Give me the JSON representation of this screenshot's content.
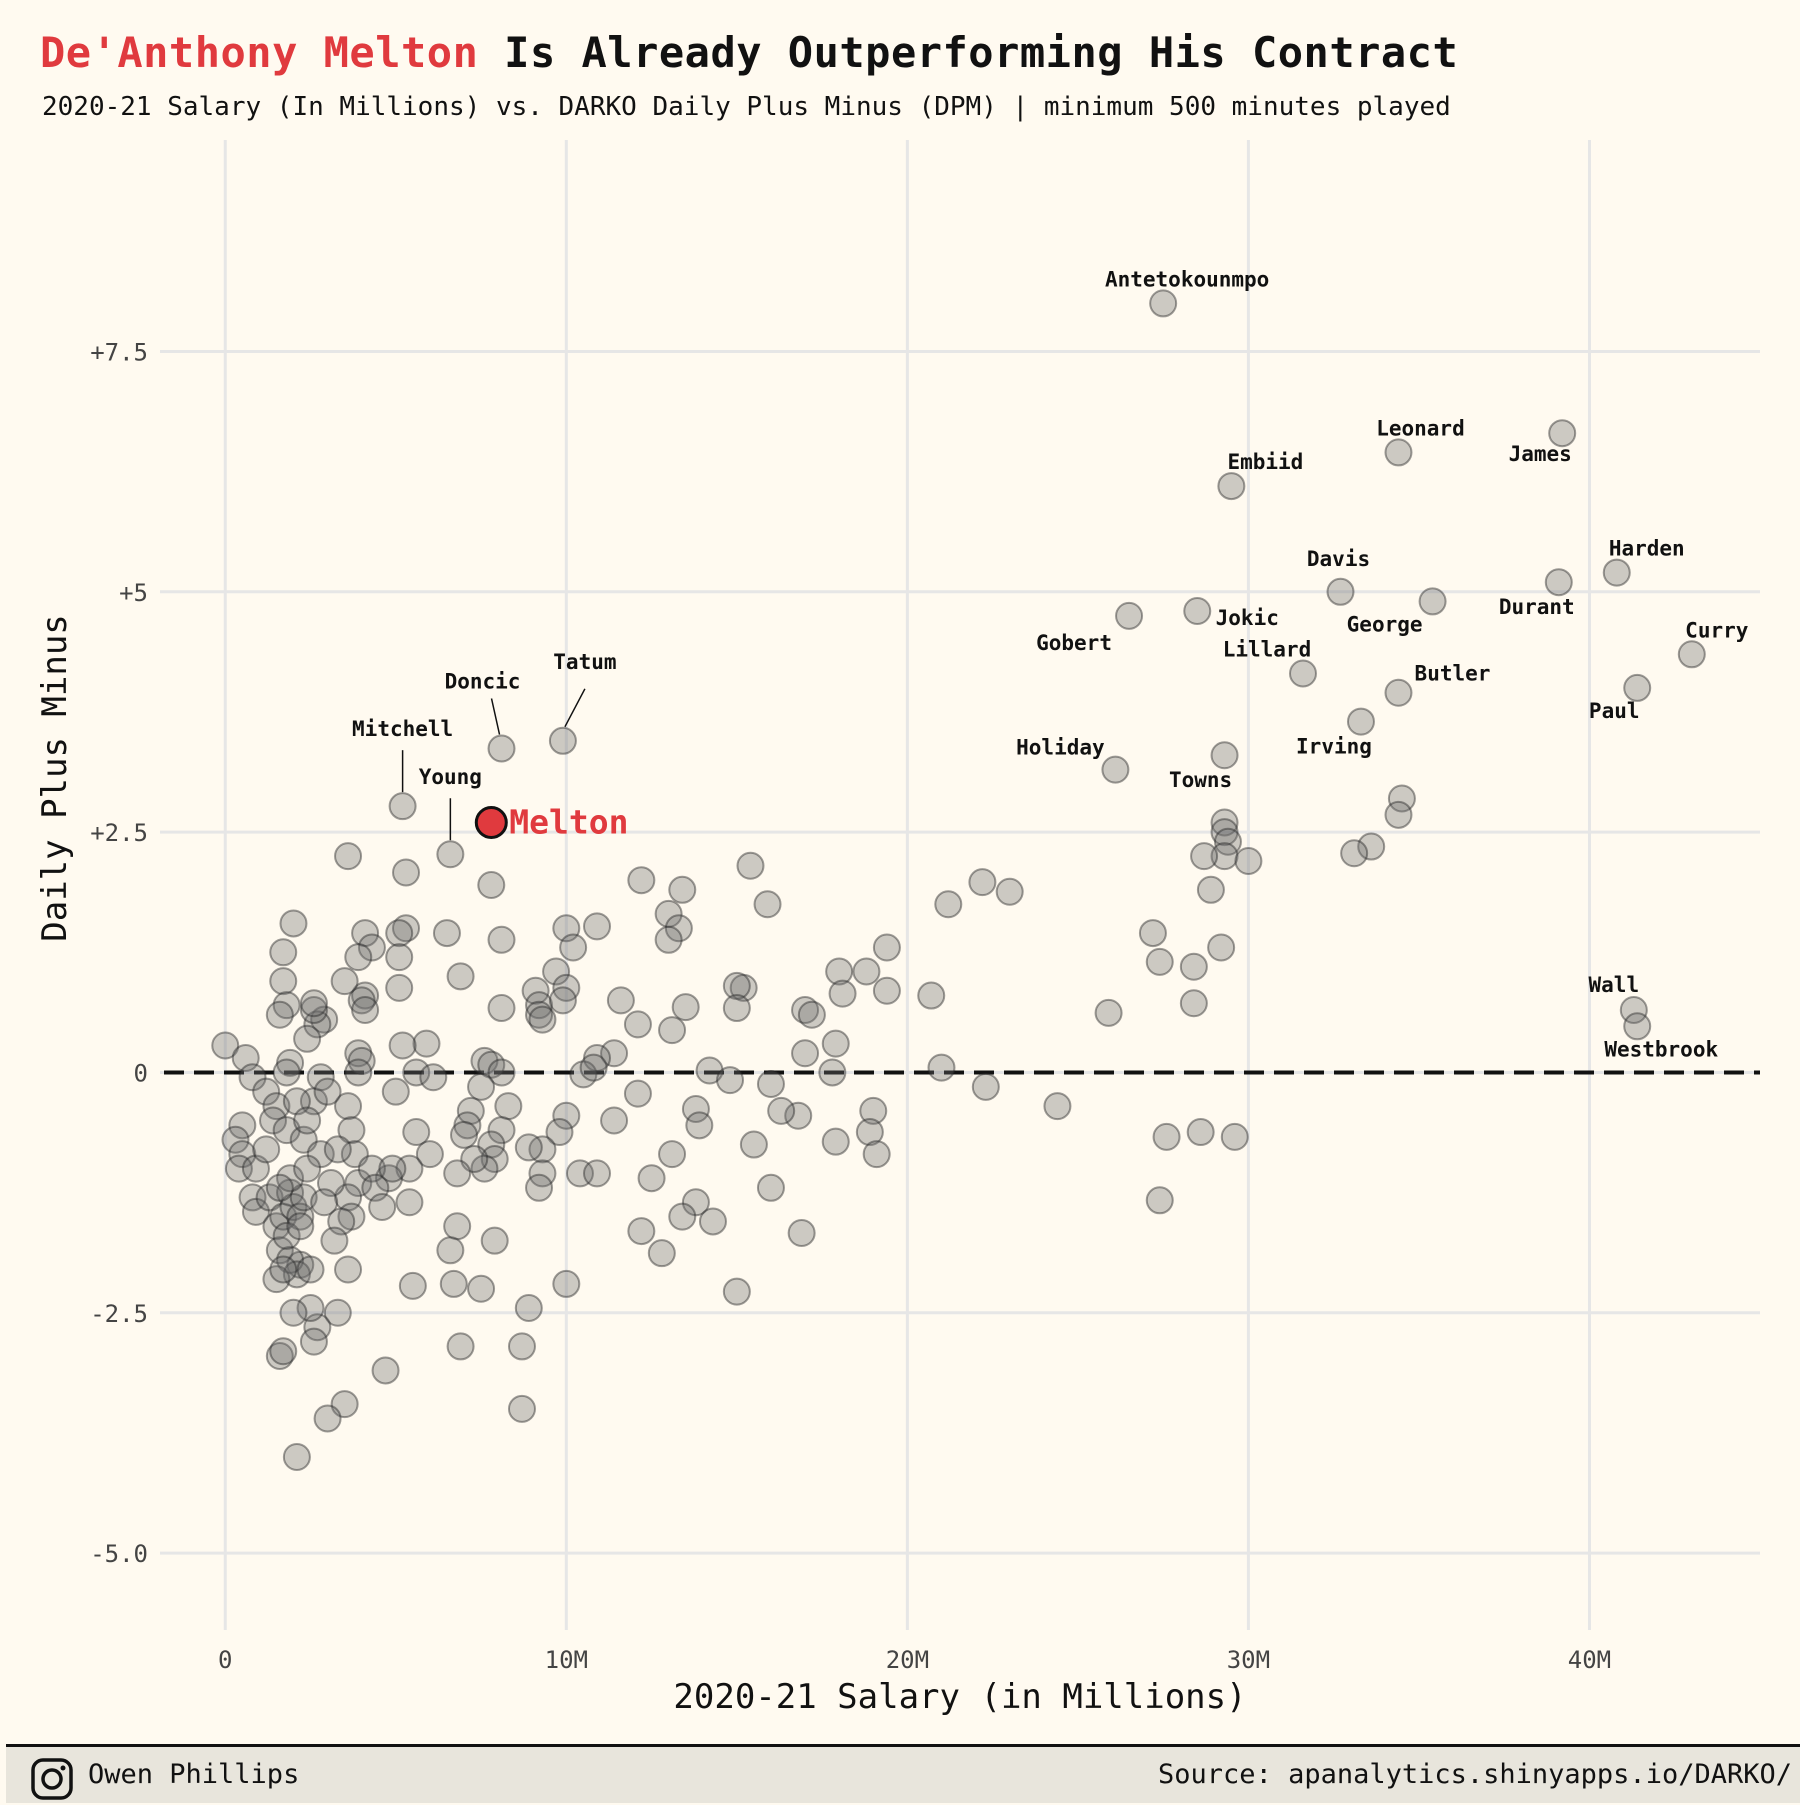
{
  "header": {
    "title_highlight": "De'Anthony Melton",
    "title_rest": " Is Already Outperforming His Contract",
    "subtitle": "2020-21 Salary (In Millions) vs. DARKO Daily Plus Minus (DPM) | minimum 500 minutes played"
  },
  "footer": {
    "author": "Owen Phillips",
    "author_icon": "instagram-icon",
    "source": "Source: apanalytics.shinyapps.io/DARKO/"
  },
  "colors": {
    "background": "#fffaf0",
    "highlight": "#e03a3e",
    "points": "#777777",
    "grid": "#e6e6e6",
    "footer_bg": "#e8e5dc"
  },
  "chart_data": {
    "type": "scatter",
    "title": "De'Anthony Melton Is Already Outperforming His Contract",
    "subtitle": "2020-21 Salary (In Millions) vs. DARKO Daily Plus Minus (DPM) | minimum 500 minutes played",
    "xlabel": "2020-21 Salary (in Millions)",
    "ylabel": "Daily Plus Minus",
    "xlim": [
      -2.5,
      45
    ],
    "ylim": [
      -5.8,
      9.7
    ],
    "x_ticks": [
      0,
      10,
      20,
      30,
      40
    ],
    "x_tick_labels": [
      "0",
      "10M",
      "20M",
      "30M",
      "40M"
    ],
    "y_ticks": [
      -5,
      -2.5,
      0,
      2.5,
      5,
      7.5
    ],
    "y_tick_labels": [
      "-5.0",
      "-2.5",
      "0",
      "+2.5",
      "+5",
      "+7.5"
    ],
    "grid": true,
    "reference_line": {
      "y": 0,
      "style": "dashed"
    },
    "highlight": {
      "label": "Melton",
      "x": 7.8,
      "y": 2.6
    },
    "labeled_points": [
      {
        "label": "Antetokounmpo",
        "x": 27.5,
        "y": 8.0
      },
      {
        "label": "James",
        "x": 39.2,
        "y": 6.65
      },
      {
        "label": "Leonard",
        "x": 34.4,
        "y": 6.45
      },
      {
        "label": "Embiid",
        "x": 29.5,
        "y": 6.1
      },
      {
        "label": "Harden",
        "x": 40.8,
        "y": 5.2
      },
      {
        "label": "Durant",
        "x": 39.1,
        "y": 5.1
      },
      {
        "label": "Davis",
        "x": 32.7,
        "y": 5.0
      },
      {
        "label": "George",
        "x": 35.4,
        "y": 4.9
      },
      {
        "label": "Jokic",
        "x": 28.5,
        "y": 4.8
      },
      {
        "label": "Gobert",
        "x": 26.5,
        "y": 4.75
      },
      {
        "label": "Curry",
        "x": 43.0,
        "y": 4.35
      },
      {
        "label": "Lillard",
        "x": 31.6,
        "y": 4.15
      },
      {
        "label": "Paul",
        "x": 41.4,
        "y": 4.0
      },
      {
        "label": "Butler",
        "x": 34.4,
        "y": 3.95
      },
      {
        "label": "Irving",
        "x": 33.3,
        "y": 3.65
      },
      {
        "label": "Tatum",
        "x": 9.9,
        "y": 3.45
      },
      {
        "label": "Doncic",
        "x": 8.1,
        "y": 3.37
      },
      {
        "label": "Towns",
        "x": 29.3,
        "y": 3.3
      },
      {
        "label": "Holiday",
        "x": 26.1,
        "y": 3.15
      },
      {
        "label": "Mitchell",
        "x": 5.2,
        "y": 2.77
      },
      {
        "label": "Young",
        "x": 6.6,
        "y": 2.27
      },
      {
        "label": "Wall",
        "x": 41.3,
        "y": 0.65
      },
      {
        "label": "Westbrook",
        "x": 41.4,
        "y": 0.48
      }
    ],
    "other_points": [
      [
        29.3,
        2.6
      ],
      [
        29.3,
        2.5
      ],
      [
        29.4,
        2.4
      ],
      [
        29.3,
        2.25
      ],
      [
        28.7,
        2.25
      ],
      [
        30.0,
        2.2
      ],
      [
        33.6,
        2.35
      ],
      [
        33.1,
        2.28
      ],
      [
        34.5,
        2.85
      ],
      [
        34.4,
        2.68
      ],
      [
        28.9,
        1.9
      ],
      [
        27.2,
        1.45
      ],
      [
        27.4,
        1.15
      ],
      [
        28.4,
        1.1
      ],
      [
        29.2,
        1.3
      ],
      [
        28.4,
        0.72
      ],
      [
        25.9,
        0.62
      ],
      [
        27.6,
        -0.67
      ],
      [
        28.6,
        -0.62
      ],
      [
        29.6,
        -0.67
      ],
      [
        27.4,
        -1.33
      ],
      [
        24.4,
        -0.35
      ],
      [
        22.3,
        -0.15
      ],
      [
        21.0,
        0.05
      ],
      [
        20.7,
        0.8
      ],
      [
        22.2,
        1.98
      ],
      [
        23.0,
        1.88
      ],
      [
        21.2,
        1.75
      ],
      [
        19.4,
        1.3
      ],
      [
        19.4,
        0.85
      ],
      [
        18.8,
        1.05
      ],
      [
        18.0,
        1.05
      ],
      [
        18.1,
        0.82
      ],
      [
        17.9,
        0.3
      ],
      [
        17.0,
        0.65
      ],
      [
        17.2,
        0.6
      ],
      [
        17.0,
        0.2
      ],
      [
        17.8,
        0.0
      ],
      [
        19.0,
        -0.4
      ],
      [
        18.9,
        -0.62
      ],
      [
        19.1,
        -0.85
      ],
      [
        17.9,
        -0.72
      ],
      [
        16.8,
        -0.45
      ],
      [
        16.3,
        -0.4
      ],
      [
        16.0,
        -0.12
      ],
      [
        16.0,
        -1.2
      ],
      [
        16.9,
        -1.67
      ],
      [
        15.4,
        2.15
      ],
      [
        15.9,
        1.75
      ],
      [
        13.4,
        1.9
      ],
      [
        13.0,
        1.65
      ],
      [
        13.3,
        1.5
      ],
      [
        12.2,
        2.0
      ],
      [
        13.0,
        1.38
      ],
      [
        15.2,
        0.88
      ],
      [
        15.0,
        0.9
      ],
      [
        15.0,
        0.67
      ],
      [
        13.5,
        0.68
      ],
      [
        13.1,
        0.44
      ],
      [
        11.6,
        0.75
      ],
      [
        12.1,
        0.5
      ],
      [
        11.4,
        0.2
      ],
      [
        10.9,
        0.15
      ],
      [
        10.5,
        -0.02
      ],
      [
        10.8,
        0.05
      ],
      [
        12.1,
        -0.22
      ],
      [
        11.4,
        -0.5
      ],
      [
        13.8,
        -0.38
      ],
      [
        13.9,
        -0.55
      ],
      [
        14.2,
        0.02
      ],
      [
        14.8,
        -0.08
      ],
      [
        15.5,
        -0.75
      ],
      [
        13.1,
        -0.85
      ],
      [
        12.5,
        -1.1
      ],
      [
        13.8,
        -1.35
      ],
      [
        13.4,
        -1.5
      ],
      [
        14.3,
        -1.55
      ],
      [
        12.2,
        -1.65
      ],
      [
        12.8,
        -1.88
      ],
      [
        15.0,
        -2.28
      ],
      [
        10.0,
        -2.2
      ],
      [
        10.0,
        1.5
      ],
      [
        10.9,
        1.52
      ],
      [
        10.2,
        1.3
      ],
      [
        9.7,
        1.05
      ],
      [
        9.1,
        0.85
      ],
      [
        10.0,
        0.88
      ],
      [
        9.2,
        0.7
      ],
      [
        9.9,
        0.75
      ],
      [
        9.2,
        0.6
      ],
      [
        9.3,
        0.55
      ],
      [
        10.0,
        -0.45
      ],
      [
        9.8,
        -0.62
      ],
      [
        9.3,
        -0.8
      ],
      [
        8.9,
        -0.78
      ],
      [
        9.3,
        -1.05
      ],
      [
        9.2,
        -1.2
      ],
      [
        10.4,
        -1.05
      ],
      [
        10.9,
        -1.05
      ],
      [
        8.9,
        -2.45
      ],
      [
        8.7,
        -2.85
      ],
      [
        8.7,
        -3.5
      ],
      [
        7.8,
        1.95
      ],
      [
        8.1,
        1.38
      ],
      [
        8.1,
        0.67
      ],
      [
        7.6,
        0.12
      ],
      [
        7.8,
        0.08
      ],
      [
        8.1,
        0.0
      ],
      [
        8.3,
        -0.35
      ],
      [
        8.1,
        -0.6
      ],
      [
        7.8,
        -0.75
      ],
      [
        7.9,
        -0.9
      ],
      [
        7.6,
        -1.0
      ],
      [
        7.9,
        -1.75
      ],
      [
        7.5,
        -0.15
      ],
      [
        7.2,
        -0.4
      ],
      [
        7.1,
        -0.55
      ],
      [
        7.0,
        -0.65
      ],
      [
        7.3,
        -0.9
      ],
      [
        6.9,
        1.0
      ],
      [
        6.5,
        1.45
      ],
      [
        6.8,
        -1.05
      ],
      [
        6.8,
        -1.6
      ],
      [
        6.6,
        -1.85
      ],
      [
        6.7,
        -2.2
      ],
      [
        7.5,
        -2.25
      ],
      [
        6.9,
        -2.85
      ],
      [
        5.9,
        0.3
      ],
      [
        5.2,
        0.28
      ],
      [
        5.6,
        0.0
      ],
      [
        6.1,
        -0.05
      ],
      [
        5.0,
        -0.2
      ],
      [
        5.6,
        -0.62
      ],
      [
        6.0,
        -0.85
      ],
      [
        5.3,
        2.08
      ],
      [
        5.3,
        1.5
      ],
      [
        5.1,
        1.45
      ],
      [
        5.1,
        1.2
      ],
      [
        5.1,
        0.88
      ],
      [
        5.4,
        -1.0
      ],
      [
        5.4,
        -1.35
      ],
      [
        5.5,
        -2.22
      ],
      [
        4.8,
        -1.1
      ],
      [
        4.7,
        -3.1
      ],
      [
        4.1,
        1.45
      ],
      [
        4.3,
        1.3
      ],
      [
        3.9,
        1.2
      ],
      [
        4.1,
        0.8
      ],
      [
        4.0,
        0.75
      ],
      [
        4.1,
        0.65
      ],
      [
        3.9,
        0.2
      ],
      [
        4.0,
        0.12
      ],
      [
        3.9,
        0.0
      ],
      [
        3.5,
        0.95
      ],
      [
        3.6,
        2.25
      ],
      [
        3.6,
        -0.35
      ],
      [
        3.7,
        -0.6
      ],
      [
        3.8,
        -0.85
      ],
      [
        3.9,
        -1.15
      ],
      [
        3.6,
        -1.3
      ],
      [
        3.7,
        -1.5
      ],
      [
        3.4,
        -1.55
      ],
      [
        3.2,
        -1.75
      ],
      [
        3.6,
        -2.05
      ],
      [
        3.1,
        -1.15
      ],
      [
        3.3,
        -2.5
      ],
      [
        3.5,
        -3.45
      ],
      [
        3.0,
        -3.6
      ],
      [
        2.7,
        -2.65
      ],
      [
        2.6,
        -2.8
      ],
      [
        2.5,
        -2.45
      ],
      [
        2.2,
        -2.0
      ],
      [
        2.0,
        -2.5
      ],
      [
        2.1,
        -4.0
      ],
      [
        1.6,
        -2.95
      ],
      [
        1.7,
        -2.9
      ],
      [
        2.9,
        0.55
      ],
      [
        2.7,
        0.5
      ],
      [
        2.6,
        0.65
      ],
      [
        2.6,
        0.72
      ],
      [
        2.4,
        0.35
      ],
      [
        2.0,
        1.55
      ],
      [
        1.7,
        1.25
      ],
      [
        1.7,
        0.95
      ],
      [
        1.8,
        0.7
      ],
      [
        1.6,
        0.6
      ],
      [
        1.9,
        0.1
      ],
      [
        1.8,
        0.0
      ],
      [
        0.0,
        0.28
      ],
      [
        0.6,
        0.15
      ],
      [
        0.8,
        -0.05
      ],
      [
        1.2,
        -0.2
      ],
      [
        1.5,
        -0.35
      ],
      [
        1.4,
        -0.5
      ],
      [
        0.5,
        -0.55
      ],
      [
        0.3,
        -0.7
      ],
      [
        0.5,
        -0.85
      ],
      [
        0.4,
        -1.0
      ],
      [
        0.9,
        -1.0
      ],
      [
        1.2,
        -0.8
      ],
      [
        0.8,
        -1.3
      ],
      [
        0.9,
        -1.45
      ],
      [
        1.3,
        -1.3
      ],
      [
        1.5,
        -1.6
      ],
      [
        1.7,
        -1.5
      ],
      [
        1.9,
        -1.25
      ],
      [
        2.0,
        -1.4
      ],
      [
        2.2,
        -1.5
      ],
      [
        2.3,
        -1.3
      ],
      [
        1.6,
        -1.85
      ],
      [
        1.9,
        -1.95
      ],
      [
        2.1,
        -2.1
      ],
      [
        2.5,
        -2.05
      ],
      [
        1.5,
        -2.15
      ],
      [
        1.7,
        -2.05
      ],
      [
        1.9,
        -1.1
      ],
      [
        1.8,
        -0.6
      ],
      [
        2.3,
        -0.7
      ],
      [
        2.6,
        -0.3
      ],
      [
        2.8,
        -0.05
      ],
      [
        3.0,
        -0.2
      ],
      [
        2.8,
        -0.85
      ],
      [
        2.4,
        -1.0
      ],
      [
        2.9,
        -1.35
      ],
      [
        1.8,
        -1.7
      ],
      [
        2.2,
        -1.6
      ],
      [
        1.6,
        -1.2
      ],
      [
        2.1,
        -0.3
      ],
      [
        2.4,
        -0.5
      ],
      [
        3.3,
        -0.8
      ],
      [
        4.3,
        -1.0
      ],
      [
        4.4,
        -1.2
      ],
      [
        4.9,
        -1.0
      ],
      [
        4.6,
        -1.4
      ]
    ]
  }
}
